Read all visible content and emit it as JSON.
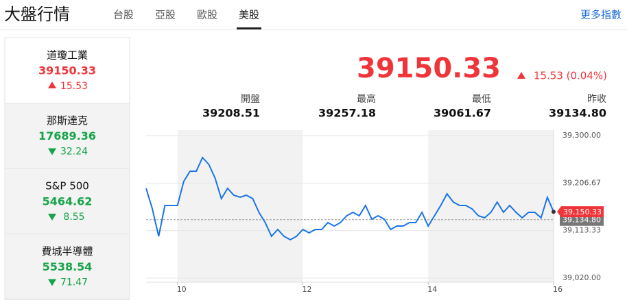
{
  "header": {
    "title": "大盤行情",
    "tabs": [
      "台股",
      "亞股",
      "歐股",
      "美股"
    ],
    "active_tab": 3,
    "more_link": "更多指數"
  },
  "sidebar": [
    {
      "name": "道瓊工業",
      "value": "39150.33",
      "change": "15.53",
      "direction": "up",
      "color": "#f0353a",
      "selected": true
    },
    {
      "name": "那斯達克",
      "value": "17689.36",
      "change": "32.24",
      "direction": "down",
      "color": "#17a34a",
      "selected": false
    },
    {
      "name": "S&P 500",
      "value": "5464.62",
      "change": "8.55",
      "direction": "down",
      "color": "#17a34a",
      "selected": false
    },
    {
      "name": "費城半導體",
      "value": "5538.54",
      "change": "71.47",
      "direction": "down",
      "color": "#17a34a",
      "selected": false
    }
  ],
  "quote": {
    "price": "39150.33",
    "change": "15.53 (0.04%)",
    "direction": "up",
    "color": "#f0353a",
    "stats": [
      {
        "label": "開盤",
        "value": "39208.51"
      },
      {
        "label": "最高",
        "value": "39257.18"
      },
      {
        "label": "最低",
        "value": "39061.67"
      },
      {
        "label": "昨收",
        "value": "39134.80"
      }
    ]
  },
  "chart_data": {
    "type": "line",
    "color": "#1a73e8",
    "x": [
      9.5,
      9.6,
      9.7,
      9.8,
      9.9,
      10.0,
      10.1,
      10.2,
      10.3,
      10.4,
      10.5,
      10.6,
      10.7,
      10.8,
      10.9,
      11.0,
      11.1,
      11.2,
      11.3,
      11.4,
      11.5,
      11.6,
      11.7,
      11.8,
      11.9,
      12.0,
      12.1,
      12.2,
      12.3,
      12.4,
      12.5,
      12.6,
      12.7,
      12.8,
      12.9,
      13.0,
      13.1,
      13.2,
      13.3,
      13.4,
      13.5,
      13.6,
      13.7,
      13.8,
      13.9,
      14.0,
      14.1,
      14.2,
      14.3,
      14.4,
      14.5,
      14.6,
      14.7,
      14.8,
      14.9,
      15.0,
      15.1,
      15.2,
      15.3,
      15.4,
      15.5,
      15.6,
      15.7,
      15.8,
      15.9,
      16.0
    ],
    "values": [
      39196.4,
      39156.0,
      39102.1,
      39162.7,
      39162.7,
      39162.7,
      39209.8,
      39230.0,
      39230.0,
      39256.9,
      39243.5,
      39216.5,
      39176.2,
      39196.4,
      39182.9,
      39178.9,
      39182.9,
      39176.2,
      39149.2,
      39129.1,
      39102.1,
      39115.6,
      39102.1,
      39095.4,
      39102.1,
      39115.6,
      39108.9,
      39115.6,
      39115.6,
      39129.1,
      39122.3,
      39129.1,
      39142.5,
      39149.2,
      39142.5,
      39162.7,
      39135.8,
      39142.5,
      39135.8,
      39115.6,
      39122.3,
      39122.3,
      39129.1,
      39129.1,
      39149.2,
      39122.3,
      39142.5,
      39162.7,
      39185.6,
      39169.4,
      39162.7,
      39162.7,
      39156.0,
      39142.5,
      39138.5,
      39149.2,
      39169.4,
      39149.2,
      39162.7,
      39149.2,
      39138.5,
      39149.2,
      39149.2,
      39138.5,
      39178.9,
      39150.33
    ],
    "xlim": [
      9.5,
      16
    ],
    "xticks": [
      10,
      12,
      14,
      16
    ],
    "ylim": [
      39011.9,
      39310.8
    ],
    "yticks": [
      {
        "value": 39020,
        "label": "39,020.00"
      },
      {
        "value": 39113.33,
        "label": "39,113.33"
      },
      {
        "value": 39206.67,
        "label": "39,206.67"
      },
      {
        "value": 39300,
        "label": "39,300.00"
      }
    ],
    "shaded_x": [
      [
        10,
        12
      ],
      [
        14,
        16
      ]
    ],
    "reference_line": {
      "value": 39134.8,
      "label": "39,134.80"
    },
    "last_label": {
      "value": 39150.33,
      "label": "39,150.33"
    },
    "grid": true
  }
}
